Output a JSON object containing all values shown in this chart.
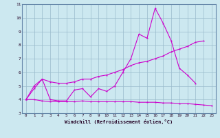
{
  "xlabel": "Windchill (Refroidissement éolien,°C)",
  "bg_color": "#cce8f0",
  "grid_color": "#99bbcc",
  "line_color": "#cc00cc",
  "xlim": [
    -0.5,
    23.5
  ],
  "ylim": [
    3,
    11
  ],
  "xticks": [
    0,
    1,
    2,
    3,
    4,
    5,
    6,
    7,
    8,
    9,
    10,
    11,
    12,
    13,
    14,
    15,
    16,
    17,
    18,
    19,
    20,
    21,
    22,
    23
  ],
  "yticks": [
    3,
    4,
    5,
    6,
    7,
    8,
    9,
    10,
    11
  ],
  "line1_x": [
    0,
    1,
    2,
    3,
    4,
    5,
    6,
    7,
    8,
    9,
    10,
    11,
    12,
    13,
    14,
    15,
    16,
    17,
    18,
    19,
    20,
    21
  ],
  "line1_y": [
    4.0,
    5.0,
    5.5,
    4.0,
    3.9,
    3.9,
    4.7,
    4.8,
    4.2,
    4.8,
    4.6,
    5.0,
    6.0,
    7.0,
    8.8,
    8.5,
    10.7,
    9.6,
    8.3,
    6.3,
    5.8,
    5.2
  ],
  "line2_x": [
    0,
    1,
    2,
    3,
    4,
    5,
    6,
    7,
    8,
    9,
    10,
    11,
    12,
    13,
    14,
    15,
    16,
    17,
    18,
    19,
    20,
    21,
    22
  ],
  "line2_y": [
    4.0,
    4.8,
    5.5,
    5.3,
    5.2,
    5.2,
    5.3,
    5.5,
    5.5,
    5.7,
    5.8,
    6.0,
    6.2,
    6.5,
    6.7,
    6.8,
    7.0,
    7.2,
    7.5,
    7.7,
    7.9,
    8.2,
    8.3
  ],
  "line3_x": [
    0,
    1,
    2,
    3,
    4,
    5,
    6,
    7,
    8,
    9,
    10,
    11,
    12,
    13,
    14,
    15,
    16,
    17,
    18,
    19,
    20,
    21,
    22,
    23
  ],
  "line3_y": [
    4.0,
    4.0,
    3.9,
    3.85,
    3.85,
    3.85,
    3.85,
    3.9,
    3.85,
    3.85,
    3.85,
    3.85,
    3.85,
    3.85,
    3.8,
    3.8,
    3.8,
    3.75,
    3.75,
    3.7,
    3.7,
    3.65,
    3.6,
    3.55
  ]
}
